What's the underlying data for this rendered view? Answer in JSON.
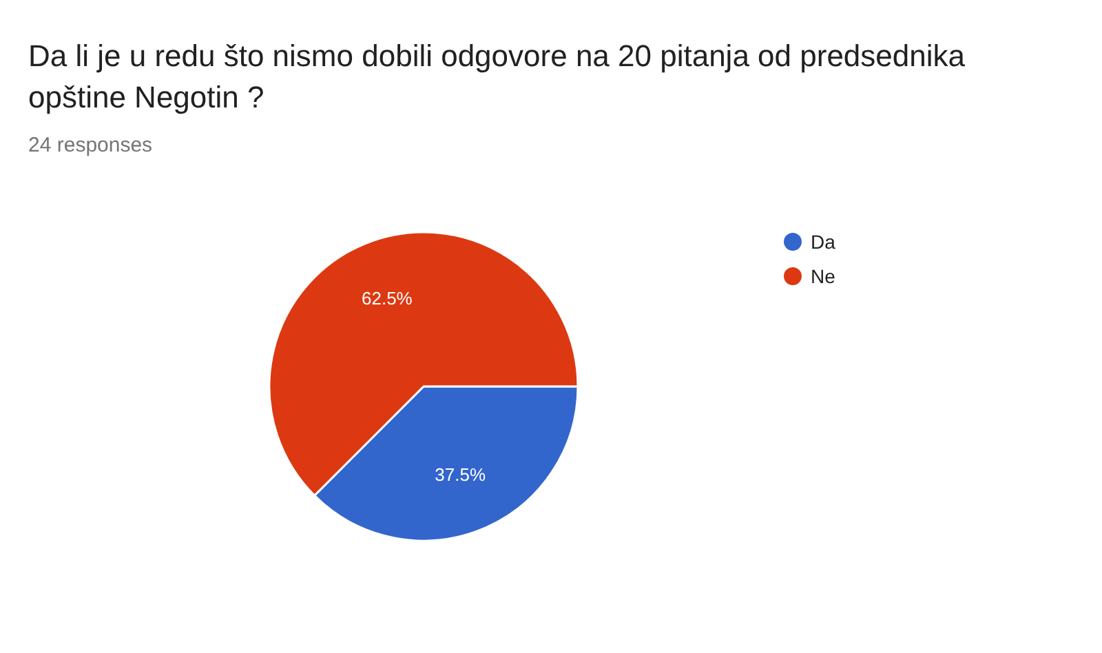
{
  "chart_data": {
    "type": "pie",
    "title": "Da li je u redu što nismo dobili odgovore na 20 pitanja od predsednika opštine Negotin ?",
    "subtitle": "24 responses",
    "categories": [
      "Da",
      "Ne"
    ],
    "values": [
      37.5,
      62.5
    ],
    "colors": [
      "#3366cc",
      "#dc3912"
    ],
    "value_labels": [
      "37.5%",
      "62.5%"
    ],
    "legend": "right"
  }
}
